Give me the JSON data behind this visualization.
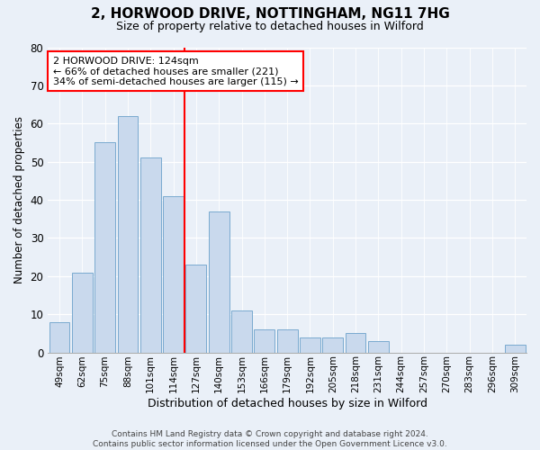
{
  "title1": "2, HORWOOD DRIVE, NOTTINGHAM, NG11 7HG",
  "title2": "Size of property relative to detached houses in Wilford",
  "xlabel": "Distribution of detached houses by size in Wilford",
  "ylabel": "Number of detached properties",
  "categories": [
    "49sqm",
    "62sqm",
    "75sqm",
    "88sqm",
    "101sqm",
    "114sqm",
    "127sqm",
    "140sqm",
    "153sqm",
    "166sqm",
    "179sqm",
    "192sqm",
    "205sqm",
    "218sqm",
    "231sqm",
    "244sqm",
    "257sqm",
    "270sqm",
    "283sqm",
    "296sqm",
    "309sqm"
  ],
  "values": [
    8,
    21,
    55,
    62,
    51,
    41,
    23,
    37,
    11,
    6,
    6,
    4,
    4,
    5,
    3,
    0,
    0,
    0,
    0,
    0,
    2
  ],
  "bar_color": "#c9d9ed",
  "bar_edge_color": "#7aaacf",
  "vline_color": "red",
  "vline_x": 5.5,
  "annotation_text": "2 HORWOOD DRIVE: 124sqm\n← 66% of detached houses are smaller (221)\n34% of semi-detached houses are larger (115) →",
  "annotation_box_color": "white",
  "annotation_box_edge": "red",
  "ylim": [
    0,
    80
  ],
  "yticks": [
    0,
    10,
    20,
    30,
    40,
    50,
    60,
    70,
    80
  ],
  "footer": "Contains HM Land Registry data © Crown copyright and database right 2024.\nContains public sector information licensed under the Open Government Licence v3.0.",
  "bg_color": "#eaf0f8",
  "plot_bg_color": "#eaf0f8"
}
